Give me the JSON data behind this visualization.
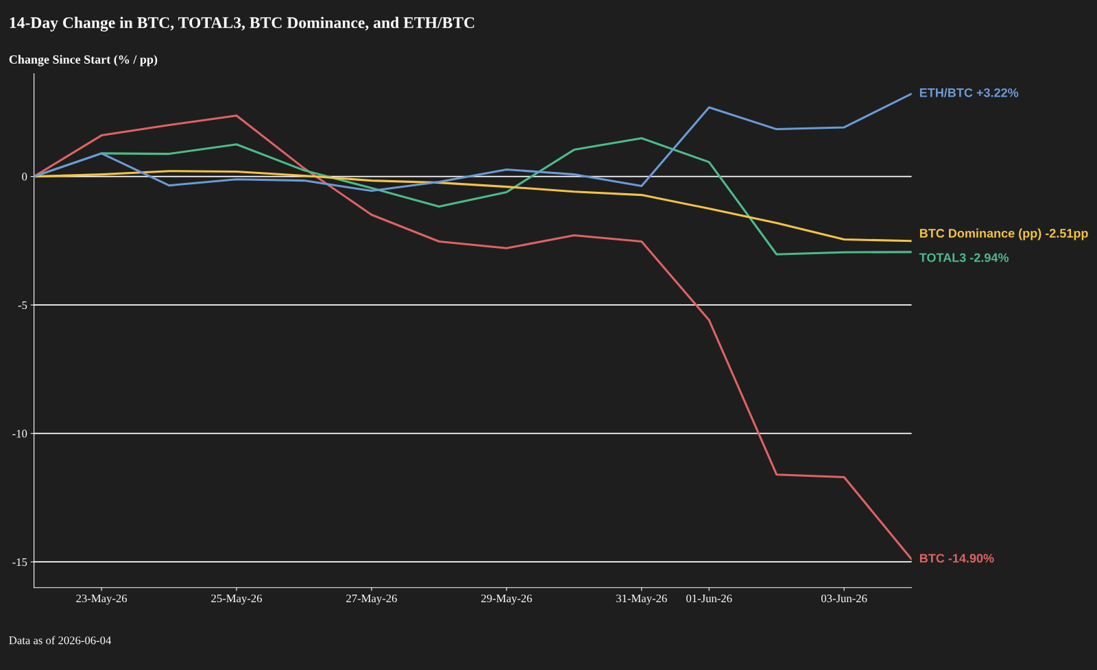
{
  "chart_data": {
    "type": "line",
    "title": "14-Day Change in BTC, TOTAL3, BTC Dominance, and ETH/BTC",
    "ylabel": "Change Since Start (% / pp)",
    "x": [
      "2026-05-22",
      "2026-05-23",
      "2026-05-24",
      "2026-05-25",
      "2026-05-26",
      "2026-05-27",
      "2026-05-28",
      "2026-05-29",
      "2026-05-30",
      "2026-05-31",
      "2026-06-01",
      "2026-06-02",
      "2026-06-03",
      "2026-06-04"
    ],
    "series": [
      {
        "name": "BTC -14.90%",
        "color": "#e06262",
        "values": [
          0,
          1.6,
          2.0,
          2.37,
          0.32,
          -1.49,
          -2.53,
          -2.79,
          -2.29,
          -2.53,
          -5.59,
          -11.6,
          -11.7,
          -14.9
        ]
      },
      {
        "name": "TOTAL3 -2.94%",
        "color": "#4cbb8a",
        "values": [
          0,
          0.9,
          0.88,
          1.25,
          0.24,
          -0.45,
          -1.17,
          -0.61,
          1.04,
          1.49,
          0.56,
          -3.03,
          -2.95,
          -2.94
        ]
      },
      {
        "name": "BTC Dominance (pp) -2.51pp",
        "color": "#f5c441",
        "values": [
          0,
          0.08,
          0.21,
          0.19,
          0.03,
          -0.16,
          -0.24,
          -0.4,
          -0.59,
          -0.72,
          -1.25,
          -1.81,
          -2.45,
          -2.51
        ]
      },
      {
        "name": "ETH/BTC +3.22%",
        "color": "#6b9bd6",
        "values": [
          0,
          0.9,
          -0.35,
          -0.11,
          -0.16,
          -0.56,
          -0.21,
          0.27,
          0.08,
          -0.37,
          2.69,
          1.84,
          1.91,
          3.22
        ]
      }
    ],
    "xlim": [
      "2026-05-22",
      "2026-06-04"
    ],
    "xticks": [
      {
        "value": "2026-05-23",
        "label": "23-May-26"
      },
      {
        "value": "2026-05-25",
        "label": "25-May-26"
      },
      {
        "value": "2026-05-27",
        "label": "27-May-26"
      },
      {
        "value": "2026-05-29",
        "label": "29-May-26"
      },
      {
        "value": "2026-05-31",
        "label": "31-May-26"
      },
      {
        "value": "2026-06-01",
        "label": "01-Jun-26"
      },
      {
        "value": "2026-06-03",
        "label": "03-Jun-26"
      }
    ],
    "ylim": [
      -16,
      4
    ],
    "yticks": [
      -15,
      -10,
      -5,
      0
    ],
    "grid": "y",
    "legend": false,
    "marker": "none",
    "line_style": "solid",
    "annotations": [
      "Data as of 2026-06-04"
    ]
  }
}
